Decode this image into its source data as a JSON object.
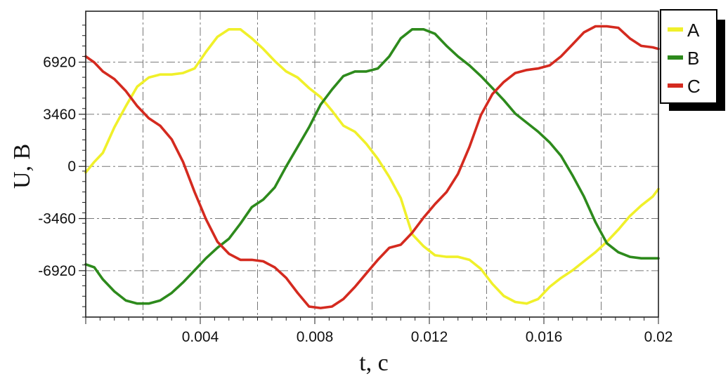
{
  "chart_data": {
    "type": "line",
    "title": "",
    "xlabel": "t, c",
    "ylabel": "U, B",
    "xlim": [
      0,
      0.02
    ],
    "ylim": [
      -10000,
      10300
    ],
    "grid": true,
    "legend_position": "top-right",
    "x_ticks": [
      {
        "value": 0.004,
        "label": "0.004"
      },
      {
        "value": 0.008,
        "label": "0.008"
      },
      {
        "value": 0.012,
        "label": "0.012"
      },
      {
        "value": 0.016,
        "label": "0.016"
      },
      {
        "value": 0.02,
        "label": "0.02"
      }
    ],
    "y_ticks": [
      {
        "value": 6920,
        "label": "6920"
      },
      {
        "value": 3460,
        "label": "3460"
      },
      {
        "value": 0,
        "label": "0"
      },
      {
        "value": -3460,
        "label": "-3460"
      },
      {
        "value": -6920,
        "label": "-6920"
      }
    ],
    "series": [
      {
        "name": "A",
        "color": "#f0f02a",
        "x": [
          0,
          0.0003,
          0.0006,
          0.001,
          0.0014,
          0.0018,
          0.0022,
          0.0026,
          0.003,
          0.0034,
          0.0038,
          0.0042,
          0.0046,
          0.005,
          0.0054,
          0.0058,
          0.0062,
          0.0066,
          0.007,
          0.0074,
          0.0078,
          0.0082,
          0.0086,
          0.009,
          0.0094,
          0.0098,
          0.0102,
          0.0106,
          0.011,
          0.0114,
          0.0118,
          0.0122,
          0.0126,
          0.013,
          0.0134,
          0.0138,
          0.0142,
          0.0146,
          0.015,
          0.0154,
          0.0158,
          0.0162,
          0.0166,
          0.017,
          0.0174,
          0.0178,
          0.0182,
          0.0186,
          0.019,
          0.0194,
          0.0198,
          0.02
        ],
        "values": [
          -400,
          300,
          900,
          2600,
          4000,
          5300,
          5900,
          6100,
          6100,
          6200,
          6500,
          7600,
          8600,
          9100,
          9100,
          8500,
          7800,
          7000,
          6300,
          5900,
          5200,
          4600,
          3700,
          2700,
          2300,
          1500,
          500,
          -700,
          -2100,
          -4500,
          -5300,
          -5900,
          -6000,
          -6000,
          -6200,
          -6800,
          -7800,
          -8600,
          -9000,
          -9100,
          -8800,
          -8000,
          -7400,
          -6900,
          -6300,
          -5700,
          -5000,
          -4200,
          -3300,
          -2600,
          -2000,
          -1500
        ]
      },
      {
        "name": "B",
        "color": "#2d8a1c",
        "x": [
          0,
          0.0003,
          0.0006,
          0.001,
          0.0014,
          0.0018,
          0.0022,
          0.0026,
          0.003,
          0.0034,
          0.0038,
          0.0042,
          0.0046,
          0.005,
          0.0054,
          0.0058,
          0.0062,
          0.0066,
          0.007,
          0.0074,
          0.0078,
          0.0082,
          0.0086,
          0.009,
          0.0094,
          0.0098,
          0.0102,
          0.0106,
          0.011,
          0.0114,
          0.0118,
          0.0122,
          0.0126,
          0.013,
          0.0134,
          0.0138,
          0.0142,
          0.0146,
          0.015,
          0.0154,
          0.0158,
          0.0162,
          0.0166,
          0.017,
          0.0174,
          0.0178,
          0.0182,
          0.0186,
          0.019,
          0.0194,
          0.0198,
          0.02
        ],
        "values": [
          -6500,
          -6700,
          -7500,
          -8300,
          -8900,
          -9100,
          -9100,
          -8900,
          -8400,
          -7700,
          -6900,
          -6100,
          -5400,
          -4800,
          -3800,
          -2700,
          -2200,
          -1400,
          0,
          1300,
          2600,
          4100,
          5100,
          6000,
          6300,
          6300,
          6500,
          7300,
          8500,
          9100,
          9100,
          8800,
          8000,
          7300,
          6700,
          6000,
          5200,
          4400,
          3500,
          2900,
          2300,
          1600,
          700,
          -600,
          -2000,
          -3700,
          -5100,
          -5700,
          -6000,
          -6100,
          -6100,
          -6100
        ]
      },
      {
        "name": "C",
        "color": "#d42a1f",
        "x": [
          0,
          0.0003,
          0.0006,
          0.001,
          0.0014,
          0.0018,
          0.0022,
          0.0026,
          0.003,
          0.0034,
          0.0038,
          0.0042,
          0.0046,
          0.005,
          0.0054,
          0.0058,
          0.0062,
          0.0066,
          0.007,
          0.0074,
          0.0078,
          0.0082,
          0.0086,
          0.009,
          0.0094,
          0.0098,
          0.0102,
          0.0106,
          0.011,
          0.0114,
          0.0118,
          0.0122,
          0.0126,
          0.013,
          0.0134,
          0.0138,
          0.0142,
          0.0146,
          0.015,
          0.0154,
          0.0158,
          0.0162,
          0.0166,
          0.017,
          0.0174,
          0.0178,
          0.0182,
          0.0186,
          0.019,
          0.0194,
          0.0198,
          0.02
        ],
        "values": [
          7300,
          6900,
          6300,
          5800,
          5000,
          4000,
          3200,
          2700,
          1800,
          300,
          -1700,
          -3500,
          -5000,
          -5800,
          -6200,
          -6200,
          -6300,
          -6700,
          -7400,
          -8400,
          -9300,
          -9400,
          -9300,
          -8800,
          -8000,
          -7100,
          -6200,
          -5400,
          -5200,
          -4400,
          -3400,
          -2500,
          -1700,
          -500,
          1300,
          3400,
          4800,
          5600,
          6200,
          6400,
          6500,
          6700,
          7300,
          8100,
          8900,
          9300,
          9300,
          9200,
          8500,
          8000,
          7900,
          7800
        ]
      }
    ]
  }
}
